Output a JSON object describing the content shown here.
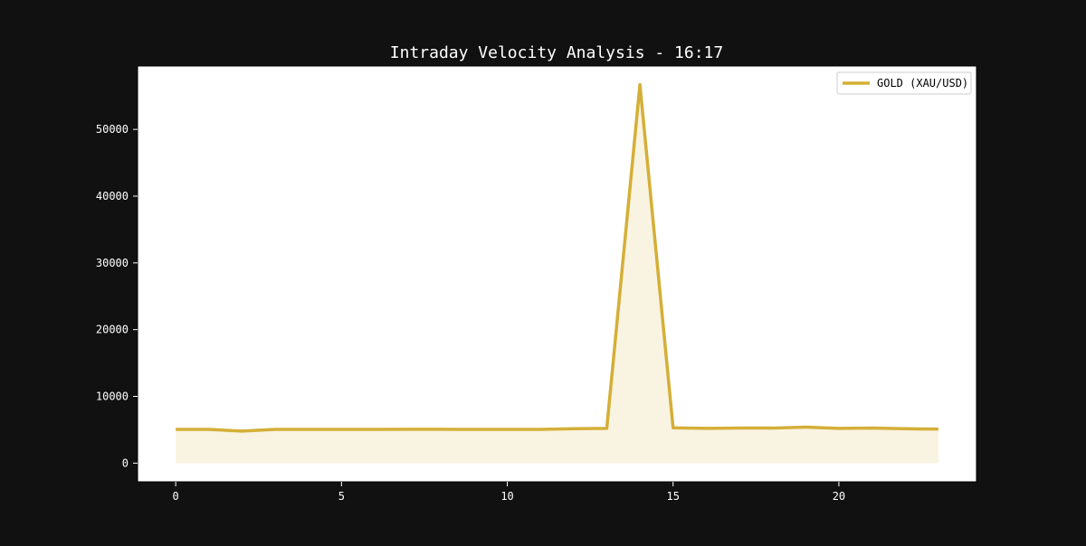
{
  "chart_data": {
    "type": "line",
    "title": "Intraday Velocity Analysis - 16:17",
    "xlabel": "",
    "ylabel": "",
    "xlim": [
      -1.15,
      24.15
    ],
    "ylim": [
      -2800,
      59500
    ],
    "xticks": [
      0,
      5,
      10,
      15,
      20
    ],
    "yticks": [
      0,
      10000,
      20000,
      30000,
      40000,
      50000
    ],
    "grid": false,
    "legend_placement": "top-right",
    "fill_under": true,
    "series": [
      {
        "name": "GOLD (XAU/USD)",
        "color": "#d4af37",
        "x": [
          0,
          1,
          2,
          3,
          4,
          5,
          6,
          7,
          8,
          9,
          10,
          11,
          12,
          13,
          14,
          15,
          16,
          17,
          18,
          19,
          20,
          21,
          22,
          23
        ],
        "values": [
          5050,
          5050,
          4800,
          5050,
          5050,
          5050,
          5050,
          5080,
          5080,
          5050,
          5050,
          5050,
          5150,
          5200,
          56700,
          5300,
          5200,
          5250,
          5250,
          5400,
          5200,
          5250,
          5150,
          5100
        ]
      }
    ]
  },
  "colors": {
    "background": "#111111",
    "plot_background": "#ffffff",
    "axis_text": "#ffffff",
    "fill": "#f6f0dc"
  }
}
